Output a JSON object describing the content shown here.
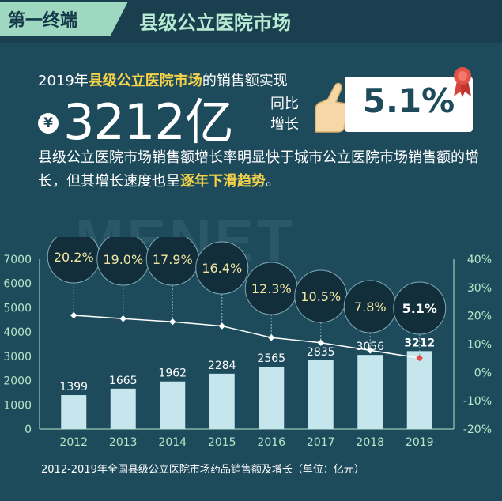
{
  "header": {
    "tag": "第一终端",
    "title": "县级公立医院市场"
  },
  "headline": {
    "prefix": "2019年",
    "highlight": "县级公立医院市场",
    "suffix": "的销售额实现",
    "currency_symbol": "¥",
    "amount": "3212亿",
    "growth_label_1": "同比",
    "growth_label_2": "增长",
    "growth_value": "5.1%"
  },
  "paragraph": {
    "text_before": "县级公立医院市场销售额增长率明显快于城市公立医院市场销售额的增长，但其增长速度也呈",
    "highlight": "逐年下滑趋势",
    "text_after": "。"
  },
  "watermark": "MENET",
  "colors": {
    "background": "#1e4b5c",
    "bar": "#c4e6ec",
    "accent_yellow": "#f5d24a",
    "axis_green": "#b5e6c7",
    "line": "#ffffff",
    "bubble": "#122e3b"
  },
  "chart_data": {
    "type": "bar",
    "categories": [
      "2012",
      "2013",
      "2014",
      "2015",
      "2016",
      "2017",
      "2018",
      "2019"
    ],
    "series": [
      {
        "values": [
          1399,
          1665,
          1962,
          2284,
          2565,
          2835,
          3056,
          3212
        ],
        "axis": "left",
        "mark": "bar"
      },
      {
        "values": [
          20.2,
          19.0,
          17.9,
          16.4,
          12.3,
          10.5,
          7.8,
          5.1
        ],
        "axis": "right",
        "mark": "line"
      }
    ],
    "value_labels": [
      "1399",
      "1665",
      "1962",
      "2284",
      "2565",
      "2835",
      "3056",
      "3212"
    ],
    "growth_labels": [
      "20.2%",
      "19.0%",
      "17.9%",
      "16.4%",
      "12.3%",
      "10.5%",
      "7.8%",
      "5.1%"
    ],
    "y_left": {
      "min": 0,
      "max": 7000,
      "ticks": [
        "0",
        "1000",
        "2000",
        "3000",
        "4000",
        "5000",
        "6000",
        "7000"
      ]
    },
    "y_right": {
      "min": -20,
      "max": 40,
      "ticks": [
        "-20%",
        "-10%",
        "0%",
        "10%",
        "20%",
        "30%",
        "40%"
      ]
    },
    "grid": false,
    "legend": "none"
  },
  "caption": "2012-2019年全国县级公立医院市场药品销售额及增长（单位：亿元）"
}
